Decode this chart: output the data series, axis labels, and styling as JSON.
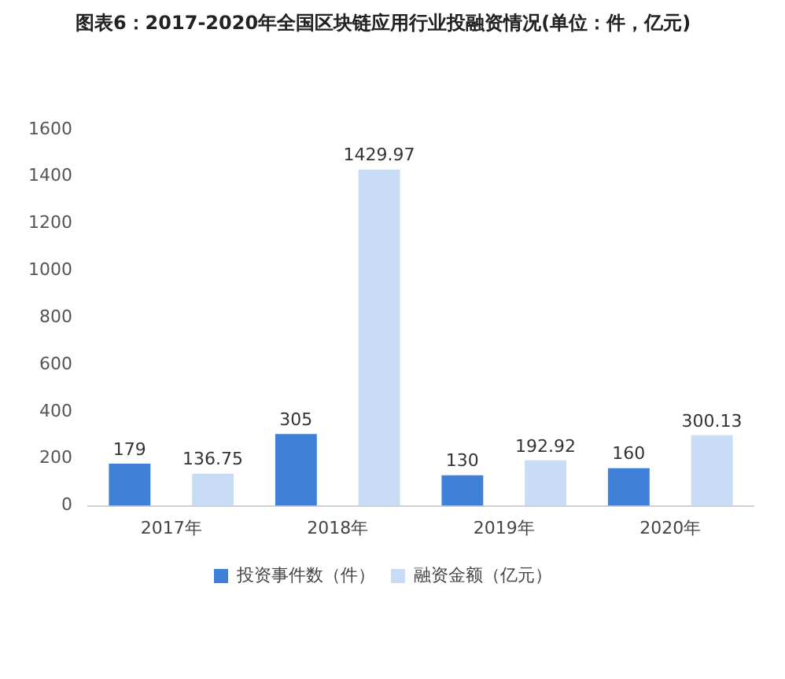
{
  "chart_data": {
    "type": "bar",
    "title": "图表6：2017-2020年全国区块链应用行业投融资情况(单位：件，亿元)",
    "categories": [
      "2017年",
      "2018年",
      "2019年",
      "2020年"
    ],
    "series": [
      {
        "name": "投资事件数（件）",
        "color": "#3f80d8",
        "values": [
          179,
          305,
          130,
          160
        ]
      },
      {
        "name": "融资金额（亿元）",
        "color": "#c9dcf5",
        "values": [
          136.75,
          1429.97,
          192.92,
          300.13
        ]
      }
    ],
    "ylim": [
      0,
      1600
    ],
    "yticks": [
      0,
      200,
      400,
      600,
      800,
      1000,
      1200,
      1400,
      1600
    ],
    "grid": false,
    "legend": "bottom",
    "data_labels": true
  }
}
